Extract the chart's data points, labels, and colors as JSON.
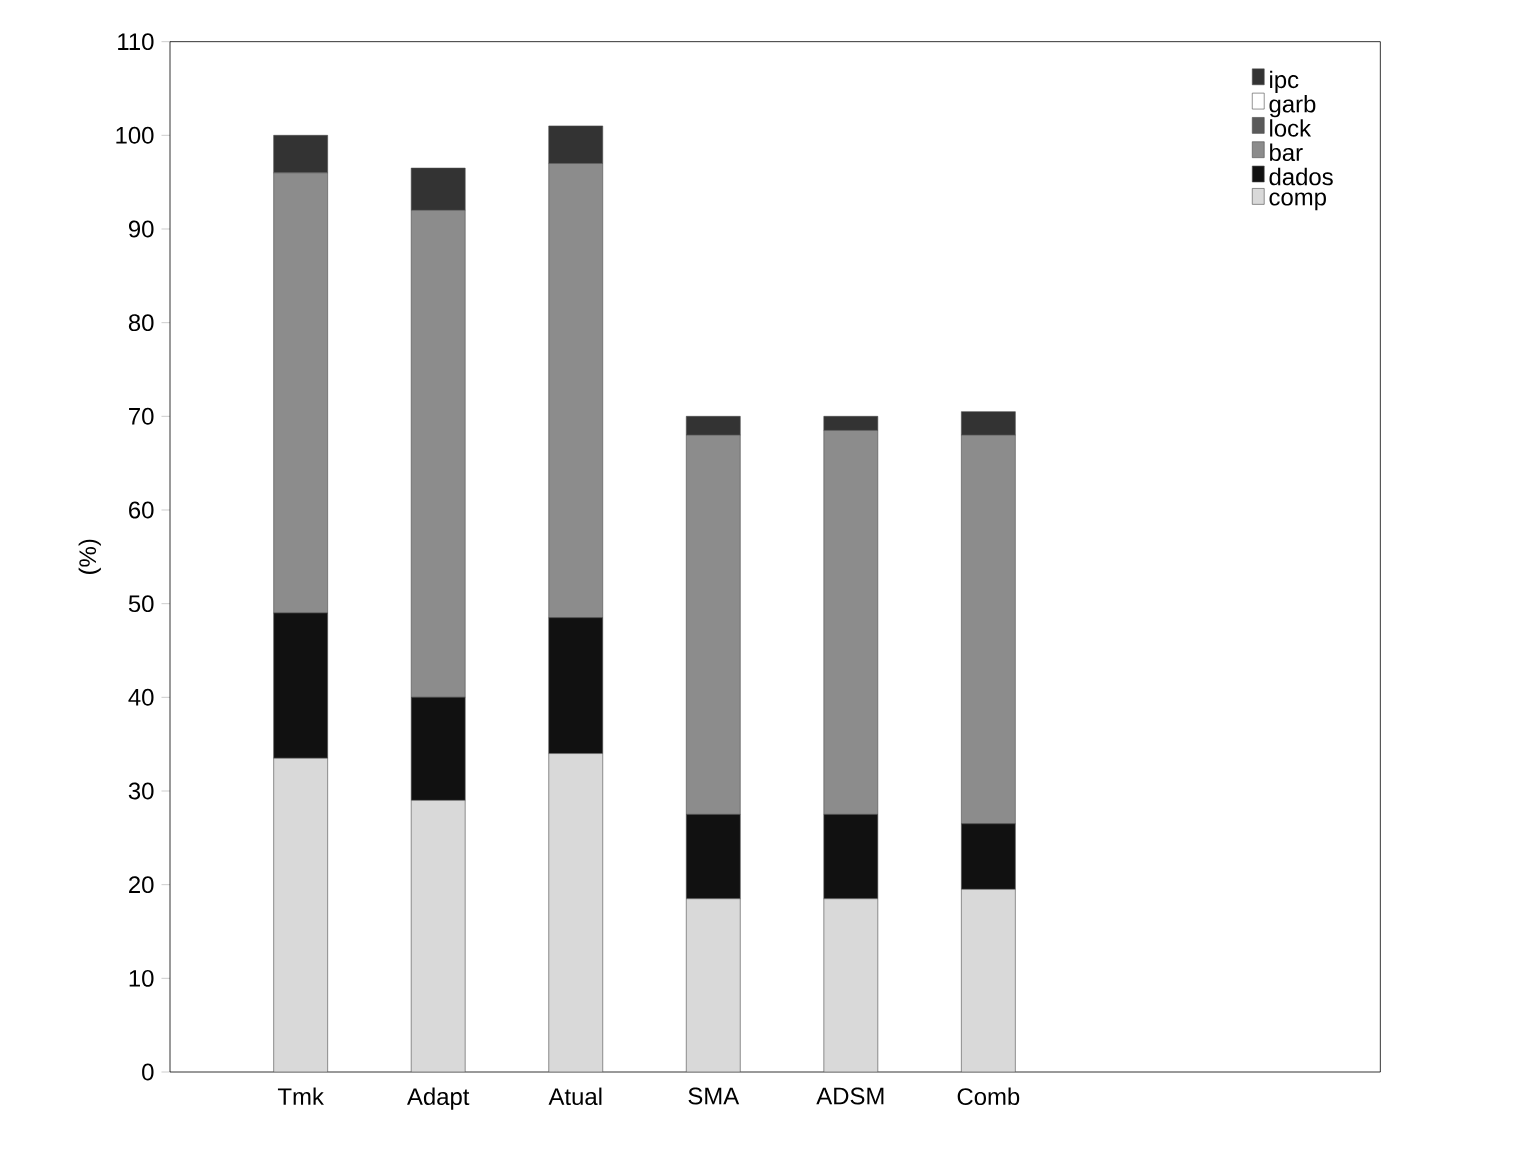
{
  "chart_data": {
    "type": "bar",
    "stacked": true,
    "ylabel": "(%)",
    "categories": [
      "Tmk",
      "Adapt",
      "Atual",
      "SMA",
      "ADSM",
      "Comb"
    ],
    "series": [
      {
        "name": "comp",
        "color": "#d9d9d9",
        "values": [
          33.5,
          29,
          34,
          18.5,
          18.5,
          19.5
        ]
      },
      {
        "name": "dados",
        "color": "#111111",
        "values": [
          15.5,
          11,
          14.5,
          9,
          9,
          7
        ]
      },
      {
        "name": "bar",
        "color": "#8c8c8c",
        "values": [
          47,
          52,
          48.5,
          40.5,
          41,
          41.5
        ]
      },
      {
        "name": "lock",
        "color": "#5a5a5a",
        "values": [
          0,
          0,
          0,
          0,
          0,
          0
        ]
      },
      {
        "name": "garb",
        "color": "#ffffff",
        "values": [
          0,
          0,
          0,
          0,
          0,
          0
        ]
      },
      {
        "name": "ipc",
        "color": "#333333",
        "values": [
          4,
          4.5,
          4,
          2,
          1.5,
          2.5
        ]
      }
    ],
    "ylim": [
      0,
      110
    ],
    "yticks": [
      0,
      10,
      20,
      30,
      40,
      50,
      60,
      70,
      80,
      90,
      100,
      110
    ],
    "grid": false,
    "legend": "top right"
  }
}
